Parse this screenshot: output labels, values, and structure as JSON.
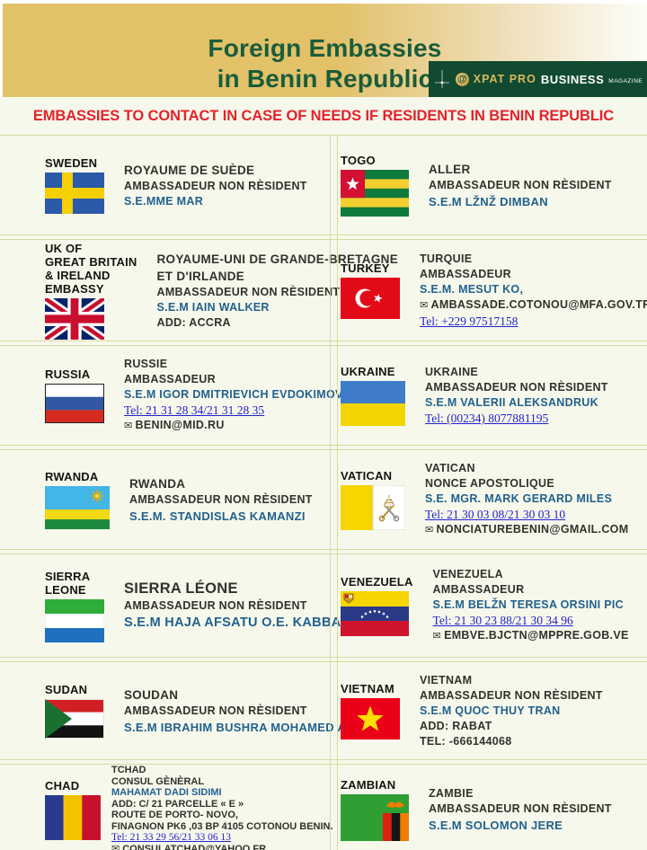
{
  "header": {
    "title_line1": "Foreign Embassies",
    "title_line2": "in Benin Republic",
    "logo": {
      "at": "@",
      "brand": "XPAT PRO",
      "bold": "BUSINESS",
      "small": "MAGAZINE"
    }
  },
  "banner": {
    "text": "EMBASSIES TO CONTACT IN CASE OF NEEDS IF RESIDENTS IN BENIN REPUBLIC"
  },
  "colors": {
    "background": "#f7f8ec",
    "band_gold": "#e2c169",
    "logo_green": "#114a30",
    "title_green": "#1a5c3a",
    "banner_red": "#e5222a",
    "name_blue": "#21618e",
    "link_blue": "#2323cf",
    "divider": "#d6daa0"
  },
  "entries": [
    {
      "flag": "sweden",
      "label": [
        "SWEDEN"
      ],
      "lines": [
        {
          "kind": "h1",
          "text": "ROYAUME DE SUÈDE"
        },
        {
          "kind": "h2",
          "text": "AMBASSADEUR NON RÈSIDENT"
        },
        {
          "kind": "name",
          "text": "S.E.MME MAR"
        }
      ]
    },
    {
      "flag": "togo",
      "label": [
        "TOGO"
      ],
      "lines": [
        {
          "kind": "h1",
          "text": "ALLER"
        },
        {
          "kind": "h2",
          "text": "AMBASSADEUR NON RÈSIDENT"
        },
        {
          "kind": "name-lg",
          "text": "S.E.M LŽNŽ DIMBAN"
        }
      ]
    },
    {
      "flag": "uk",
      "label": [
        "UK OF",
        "GREAT BRITAIN",
        "& IRELAND",
        "EMBASSY"
      ],
      "lines": [
        {
          "kind": "h1",
          "text": "ROYAUME-UNI DE GRANDE-BRETAGNE"
        },
        {
          "kind": "h1",
          "text": "ET D'IRLANDE"
        },
        {
          "kind": "h2",
          "text": "AMBASSADEUR NON RÈSIDENT"
        },
        {
          "kind": "name",
          "text": "S.E.M IAIN WALKER"
        },
        {
          "kind": "h2",
          "text": "ADD: ACCRA"
        }
      ]
    },
    {
      "flag": "turkey",
      "label": [
        "TURKEY"
      ],
      "lines": [
        {
          "kind": "h2",
          "text": "TURQUIE"
        },
        {
          "kind": "h2",
          "text": "AMBASSADEUR"
        },
        {
          "kind": "name",
          "text": "S.E.M. MESUT KO,"
        },
        {
          "kind": "email",
          "text": "AMBASSADE.COTONOU@MFA.GOV.TR"
        },
        {
          "kind": "link",
          "text": "Tel: +229 97517158"
        }
      ]
    },
    {
      "flag": "russia",
      "label": [
        "RUSSIA"
      ],
      "lines": [
        {
          "kind": "h2",
          "text": "RUSSIE"
        },
        {
          "kind": "h2",
          "text": "AMBASSADEUR"
        },
        {
          "kind": "name",
          "text": "S.E.M IGOR DMITRIEVICH EVDOKIMOV"
        },
        {
          "kind": "link",
          "text": "Tel: 21 31 28 34/21 31 28 35"
        },
        {
          "kind": "email",
          "text": "BENIN@MID.RU"
        }
      ]
    },
    {
      "flag": "ukraine",
      "label": [
        "UKRAINE"
      ],
      "lines": [
        {
          "kind": "h2",
          "text": "UKRAINE"
        },
        {
          "kind": "h2",
          "text": "AMBASSADEUR NON RÈSIDENT"
        },
        {
          "kind": "name",
          "text": "S.E.M VALERII ALEKSANDRUK"
        },
        {
          "kind": "link",
          "text": "Tel: (00234) 8077881195"
        }
      ]
    },
    {
      "flag": "rwanda",
      "label": [
        "RWANDA"
      ],
      "lines": [
        {
          "kind": "h1",
          "text": "RWANDA"
        },
        {
          "kind": "h2",
          "text": "AMBASSADEUR NON RÈSIDENT"
        },
        {
          "kind": "name-lg",
          "text": "S.E.M. STANDISLAS KAMANZI"
        }
      ]
    },
    {
      "flag": "vatican",
      "label": [
        "VATICAN"
      ],
      "lines": [
        {
          "kind": "h2",
          "text": "VATICAN"
        },
        {
          "kind": "h2",
          "text": "NONCE APOSTOLIQUE"
        },
        {
          "kind": "name",
          "text": "S.E. MGR. MARK GERARD MILES"
        },
        {
          "kind": "link",
          "text": "Tel: 21 30 03 08/21 30 03 10"
        },
        {
          "kind": "email",
          "text": "NONCIATUREBENIN@GMAIL.COM"
        }
      ]
    },
    {
      "flag": "sierra_leone",
      "label": [
        "SIERRA",
        "LEONE"
      ],
      "lines": [
        {
          "kind": "h1-xl",
          "text": "SIERRA LÉONE"
        },
        {
          "kind": "h2",
          "text": "AMBASSADEUR NON RÈSIDENT"
        },
        {
          "kind": "name-xl",
          "text": "S.E.M HAJA AFSATU O.E. KABBA"
        }
      ]
    },
    {
      "flag": "venezuela",
      "label": [
        "VENEZUELA"
      ],
      "lines": [
        {
          "kind": "h2",
          "text": "VENEZUELA"
        },
        {
          "kind": "h2",
          "text": "AMBASSADEUR"
        },
        {
          "kind": "name",
          "text": "S.E.M BELŽN TERESA ORSINI PIC"
        },
        {
          "kind": "link",
          "text": "Tel: 21 30 23 88/21 30 34 96"
        },
        {
          "kind": "email",
          "text": "EMBVE.BJCTN@MPPRE.GOB.VE"
        }
      ]
    },
    {
      "flag": "sudan",
      "label": [
        "SUDAN"
      ],
      "lines": [
        {
          "kind": "h1",
          "text": "SOUDAN"
        },
        {
          "kind": "h2",
          "text": "AMBASSADEUR NON RÈSIDENT"
        },
        {
          "kind": "name-lg",
          "text": "S.E.M IBRAHIM BUSHRA MOHAMED ALI"
        }
      ]
    },
    {
      "flag": "vietnam",
      "label": [
        "VIETNAM"
      ],
      "lines": [
        {
          "kind": "h2",
          "text": "VIETNAM"
        },
        {
          "kind": "h2",
          "text": "AMBASSADEUR NON RÈSIDENT"
        },
        {
          "kind": "name",
          "text": "S.E.M QUOC THUY TRAN"
        },
        {
          "kind": "h2",
          "text": "ADD: RABAT"
        },
        {
          "kind": "h2",
          "text": "TEL: -666144068"
        }
      ]
    },
    {
      "flag": "chad",
      "label": [
        "CHAD"
      ],
      "compact": true,
      "lines": [
        {
          "kind": "h2",
          "text": "TCHAD"
        },
        {
          "kind": "h2",
          "text": "CONSUL GÈNÈRAL"
        },
        {
          "kind": "name",
          "text": "MAHAMAT DADI SIDIMI"
        },
        {
          "kind": "h2",
          "text": "ADD: C/ 21 PARCELLE « E »"
        },
        {
          "kind": "h2",
          "text": "ROUTE DE PORTO- NOVO,"
        },
        {
          "kind": "h2",
          "text": "FINAGNON PK6 ,03 BP 4105 COTONOU BENIN."
        },
        {
          "kind": "link",
          "text": "Tel: 21 33 29 56/21 33 06 13"
        },
        {
          "kind": "email",
          "text": "CONSULATCHAD@YAHOO.FR"
        }
      ]
    },
    {
      "flag": "zambia",
      "label": [
        "ZAMBIAN"
      ],
      "lines": [
        {
          "kind": "h2",
          "text": "ZAMBIE"
        },
        {
          "kind": "h2",
          "text": "AMBASSADEUR NON RÈSIDENT"
        },
        {
          "kind": "name-lg",
          "text": "S.E.M SOLOMON JERE"
        }
      ]
    }
  ]
}
